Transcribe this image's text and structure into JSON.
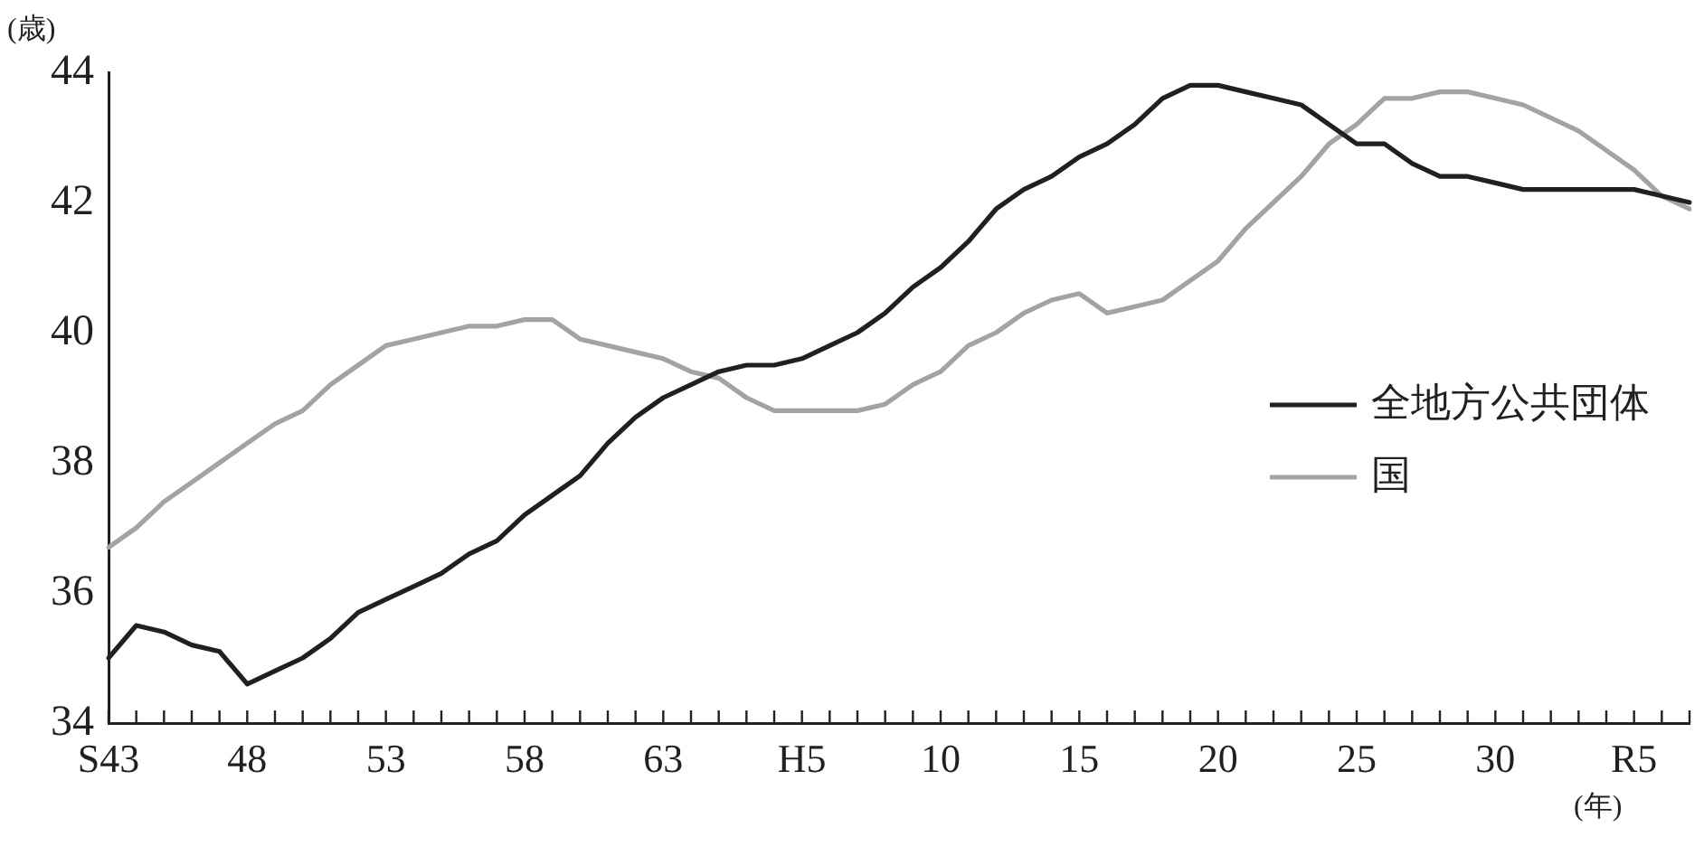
{
  "chart_data": {
    "type": "line",
    "ylabel": "(歳)",
    "xlabel": "(年)",
    "categories": [
      "S43",
      null,
      null,
      null,
      null,
      "48",
      null,
      null,
      null,
      null,
      "53",
      null,
      null,
      null,
      null,
      "58",
      null,
      null,
      null,
      null,
      "63",
      null,
      null,
      null,
      null,
      "H5",
      null,
      null,
      null,
      null,
      "10",
      null,
      null,
      null,
      null,
      "15",
      null,
      null,
      null,
      null,
      "20",
      null,
      null,
      null,
      null,
      "25",
      null,
      null,
      null,
      null,
      "30",
      null,
      null,
      null,
      null,
      "R5",
      null,
      null
    ],
    "series": [
      {
        "name": "全地方公共団体",
        "color": "#231f20",
        "values": [
          35.0,
          35.5,
          35.4,
          35.2,
          35.1,
          34.6,
          34.8,
          35.0,
          35.3,
          35.7,
          35.9,
          36.1,
          36.3,
          36.6,
          36.8,
          37.2,
          37.5,
          37.8,
          38.3,
          38.7,
          39.0,
          39.2,
          39.4,
          39.5,
          39.5,
          39.6,
          39.8,
          40.0,
          40.3,
          40.7,
          41.0,
          41.4,
          41.9,
          42.2,
          42.4,
          42.7,
          42.9,
          43.2,
          43.6,
          43.8,
          43.8,
          43.7,
          43.6,
          43.5,
          43.2,
          42.9,
          42.9,
          42.6,
          42.4,
          42.4,
          42.3,
          42.2,
          42.2,
          42.2,
          42.2,
          42.2,
          42.1,
          42.0
        ]
      },
      {
        "name": "国",
        "color": "#a3a3a3",
        "values": [
          36.7,
          37.0,
          37.4,
          37.7,
          38.0,
          38.3,
          38.6,
          38.8,
          39.2,
          39.5,
          39.8,
          39.9,
          40.0,
          40.1,
          40.1,
          40.2,
          40.2,
          39.9,
          39.8,
          39.7,
          39.6,
          39.4,
          39.3,
          39.0,
          38.8,
          38.8,
          38.8,
          38.8,
          38.9,
          39.2,
          39.4,
          39.8,
          40.0,
          40.3,
          40.5,
          40.6,
          40.3,
          40.4,
          40.5,
          40.8,
          41.1,
          41.6,
          42.0,
          42.4,
          42.9,
          43.2,
          43.6,
          43.6,
          43.7,
          43.7,
          43.6,
          43.5,
          43.3,
          43.1,
          42.8,
          42.5,
          42.1,
          41.9
        ]
      }
    ],
    "ylim": [
      34,
      44
    ],
    "yticks": [
      34,
      36,
      38,
      40,
      42,
      44
    ],
    "grid": false,
    "legend": "right",
    "marker": "none",
    "line_style": "solid"
  }
}
